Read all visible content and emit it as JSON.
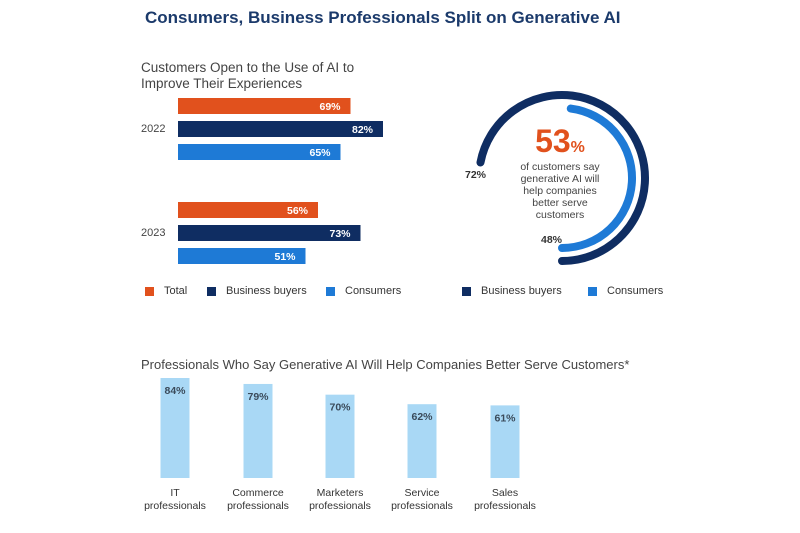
{
  "title": "Consumers, Business Professionals Split on Generative AI",
  "colors": {
    "total": "#e1511d",
    "business": "#0f2d62",
    "consumers": "#1e7ad6",
    "light": "#a9d8f5"
  },
  "chart_data": [
    {
      "type": "bar",
      "orientation": "horizontal",
      "title": "Customers Open to the Use of AI to Improve Their Experiences",
      "categories": [
        "2022",
        "2023"
      ],
      "series": [
        {
          "name": "Total",
          "values": [
            69,
            56
          ],
          "labels": [
            "69%",
            "56%"
          ]
        },
        {
          "name": "Business buyers",
          "values": [
            82,
            73
          ],
          "labels": [
            "82%",
            "73%"
          ]
        },
        {
          "name": "Consumers",
          "values": [
            65,
            51
          ],
          "labels": [
            "65%",
            "51%"
          ]
        }
      ],
      "xlim": [
        0,
        100
      ],
      "legend": "bottom"
    },
    {
      "type": "pie",
      "style": "concentric-arcs",
      "headline": "53",
      "headline_unit": "%",
      "caption": [
        "of customers say",
        "generative AI will",
        "help companies",
        "better serve",
        "customers"
      ],
      "series": [
        {
          "name": "Business buyers",
          "value": 72,
          "label": "72%"
        },
        {
          "name": "Consumers",
          "value": 48,
          "label": "48%"
        }
      ],
      "legend": "bottom"
    },
    {
      "type": "bar",
      "orientation": "vertical",
      "title": "Professionals Who Say Generative AI Will Help Companies Better Serve Customers*",
      "categories": [
        [
          "IT",
          "professionals"
        ],
        [
          "Commerce",
          "professionals"
        ],
        [
          "Marketers",
          "professionals"
        ],
        [
          "Service",
          "professionals"
        ],
        [
          "Sales",
          "professionals"
        ]
      ],
      "values": [
        84,
        79,
        70,
        62,
        61
      ],
      "labels": [
        "84%",
        "79%",
        "70%",
        "62%",
        "61%"
      ],
      "ylim": [
        0,
        84
      ]
    }
  ]
}
